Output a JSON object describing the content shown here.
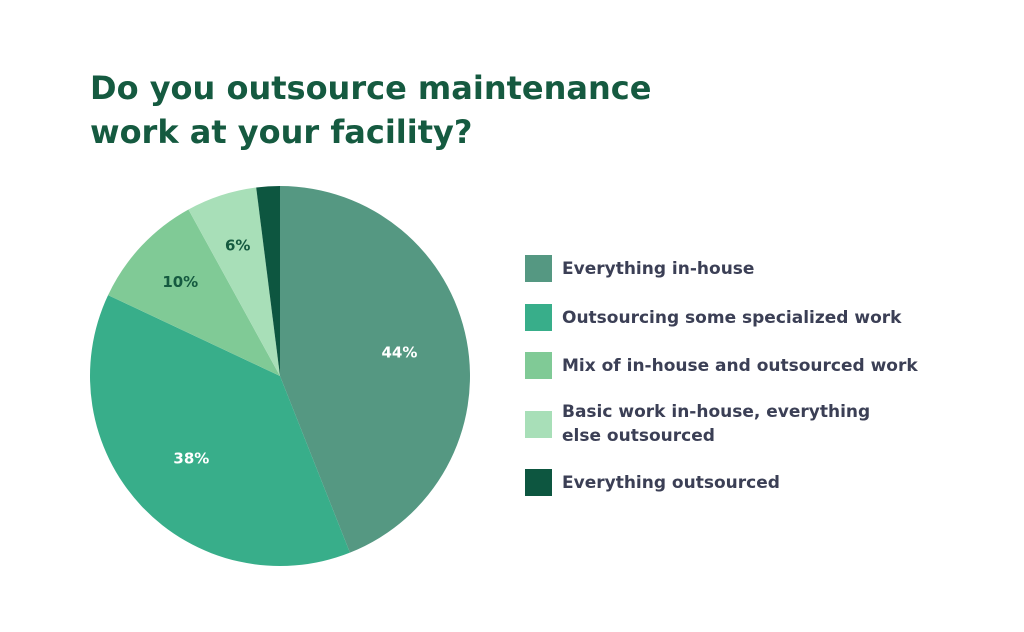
{
  "chart_data": {
    "type": "pie",
    "title": "Do you outsource maintenance work at your facility?",
    "categories": [
      "Everything in-house",
      "Outsourcing some specialized work",
      "Mix of in-house and outsourced work",
      "Basic work in-house, everything else outsourced",
      "Everything outsourced"
    ],
    "values": [
      44,
      38,
      10,
      6,
      2
    ],
    "value_labels": [
      "44%",
      "38%",
      "10%",
      "6%",
      null
    ],
    "colors": [
      "#559882",
      "#38ae8a",
      "#80ca96",
      "#a8dfb8",
      "#0d5640"
    ],
    "legend": "right"
  }
}
